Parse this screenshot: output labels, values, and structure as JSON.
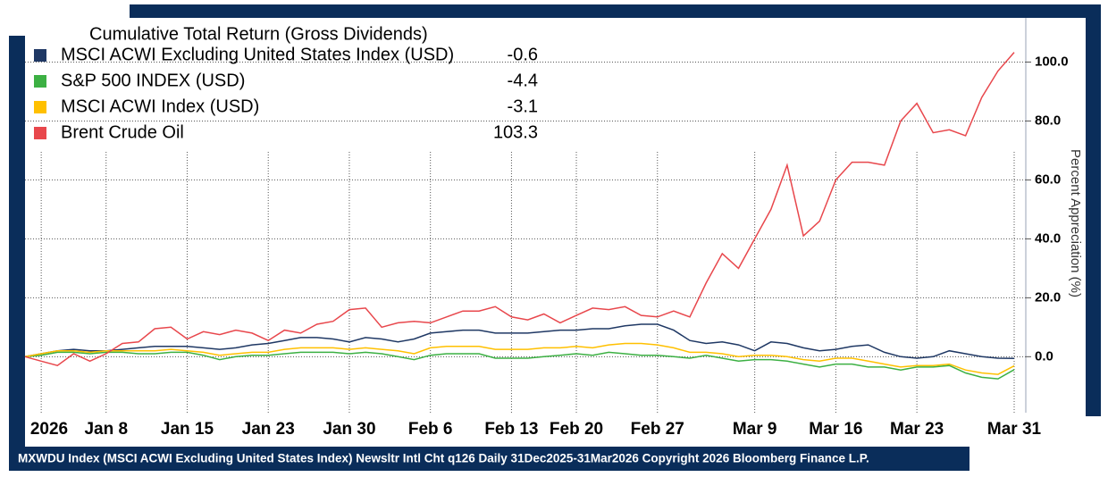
{
  "chart_data": {
    "type": "line",
    "title": "Cumulative Total Return (Gross Dividends)",
    "y_label": "Percent Appreciation (%)",
    "footnote": "MXWDU Index (MSCI ACWI Excluding United States Index) Newsltr Intl Cht q126 Daily 31Dec2025-31Mar2026  Copyright 2026 Bloomberg Finance L.P.",
    "categories": [
      null,
      "2026",
      null,
      null,
      null,
      "Jan 8",
      null,
      null,
      null,
      null,
      "Jan 15",
      null,
      null,
      null,
      null,
      "Jan 23",
      null,
      null,
      null,
      null,
      "Jan 30",
      null,
      null,
      null,
      null,
      "Feb 6",
      null,
      null,
      null,
      null,
      "Feb 13",
      null,
      null,
      null,
      "Feb 20",
      null,
      null,
      null,
      null,
      "Feb 27",
      null,
      null,
      null,
      null,
      null,
      "Mar 9",
      null,
      null,
      null,
      null,
      "Mar 16",
      null,
      null,
      null,
      null,
      "Mar 23",
      null,
      null,
      null,
      null,
      null,
      "Mar 31"
    ],
    "series": [
      {
        "name": "MSCI ACWI Excluding United States Index (USD)",
        "color": "#1f3864",
        "values": [
          0,
          1,
          2,
          2.5,
          2,
          2,
          2.5,
          3,
          3.5,
          3.5,
          3.5,
          3,
          2.5,
          3,
          4,
          4.5,
          5.5,
          6.5,
          6.5,
          6,
          5,
          6.5,
          6,
          5,
          6,
          8,
          8.5,
          9,
          9,
          8,
          8,
          8,
          8.5,
          9,
          9,
          9.5,
          9.5,
          10.5,
          11,
          11,
          9,
          5.5,
          4.5,
          5,
          4,
          2,
          5,
          4.5,
          3,
          2,
          2.5,
          3.5,
          4,
          1.5,
          0,
          -0.5,
          0,
          2,
          1,
          0,
          -0.5,
          -0.6
        ]
      },
      {
        "name": "S&P 500 INDEX (USD)",
        "color": "#3cb043",
        "values": [
          0,
          0.5,
          1.5,
          1.5,
          1,
          1.5,
          1.5,
          1,
          1,
          1.5,
          1.5,
          0.5,
          -1,
          0,
          0.5,
          0.5,
          1,
          1.5,
          1.5,
          1.5,
          1,
          1.5,
          1,
          0,
          -1,
          0.5,
          1,
          1,
          1,
          -0.5,
          -0.5,
          -0.5,
          0,
          0.5,
          1,
          0.5,
          1.5,
          1,
          0.5,
          0.5,
          0,
          -0.5,
          0.5,
          -0.5,
          -1.5,
          -1,
          -1,
          -1.5,
          -2.5,
          -3.5,
          -2.5,
          -2.5,
          -3.5,
          -3.5,
          -4.5,
          -3.5,
          -3.5,
          -3,
          -5.5,
          -7,
          -7.5,
          -4.4
        ]
      },
      {
        "name": "MSCI ACWI Index (USD)",
        "color": "#ffc000",
        "values": [
          0,
          1,
          2,
          2,
          1.5,
          2,
          2,
          2,
          2,
          2.5,
          2,
          1.5,
          0.5,
          1,
          1.5,
          1.5,
          2.5,
          3,
          3,
          3,
          2.5,
          3,
          2.5,
          2,
          1,
          3,
          3.5,
          3.5,
          3.5,
          2.5,
          2.5,
          2.5,
          3,
          3,
          3.5,
          3,
          4,
          4.5,
          4.5,
          4,
          3,
          1.5,
          1.5,
          1,
          0,
          0.5,
          0.5,
          0,
          -1,
          -1.5,
          -0.5,
          -0.5,
          -1.5,
          -2.5,
          -3.5,
          -3,
          -3,
          -2.5,
          -4.5,
          -5.5,
          -6,
          -3.1
        ]
      },
      {
        "name": "Brent Crude Oil",
        "color": "#e8474c",
        "values": [
          0,
          -1.5,
          -3,
          1,
          -1.5,
          1,
          4.5,
          5,
          9.5,
          10,
          6,
          8.5,
          7.5,
          9,
          8,
          5.5,
          9,
          8,
          11,
          12,
          16,
          16.5,
          10,
          11.5,
          12,
          11.5,
          13.5,
          15.5,
          15.5,
          17,
          13.5,
          12.5,
          14.5,
          11.5,
          14,
          16.5,
          16,
          17,
          14,
          13.5,
          15.5,
          13.5,
          25,
          35,
          30,
          40,
          50,
          65,
          41,
          46,
          60,
          66,
          66,
          65,
          80,
          86,
          76,
          77,
          75,
          88,
          97,
          103.3
        ]
      }
    ],
    "ylim": [
      -19,
      115
    ],
    "yticks": [
      {
        "value": 0,
        "label": "0.0"
      },
      {
        "value": 20,
        "label": "20.0"
      },
      {
        "value": 40,
        "label": "40.0"
      },
      {
        "value": 60,
        "label": "60.0"
      },
      {
        "value": 80,
        "label": "80.0"
      },
      {
        "value": 100,
        "label": "100.0"
      }
    ],
    "grid": true
  }
}
